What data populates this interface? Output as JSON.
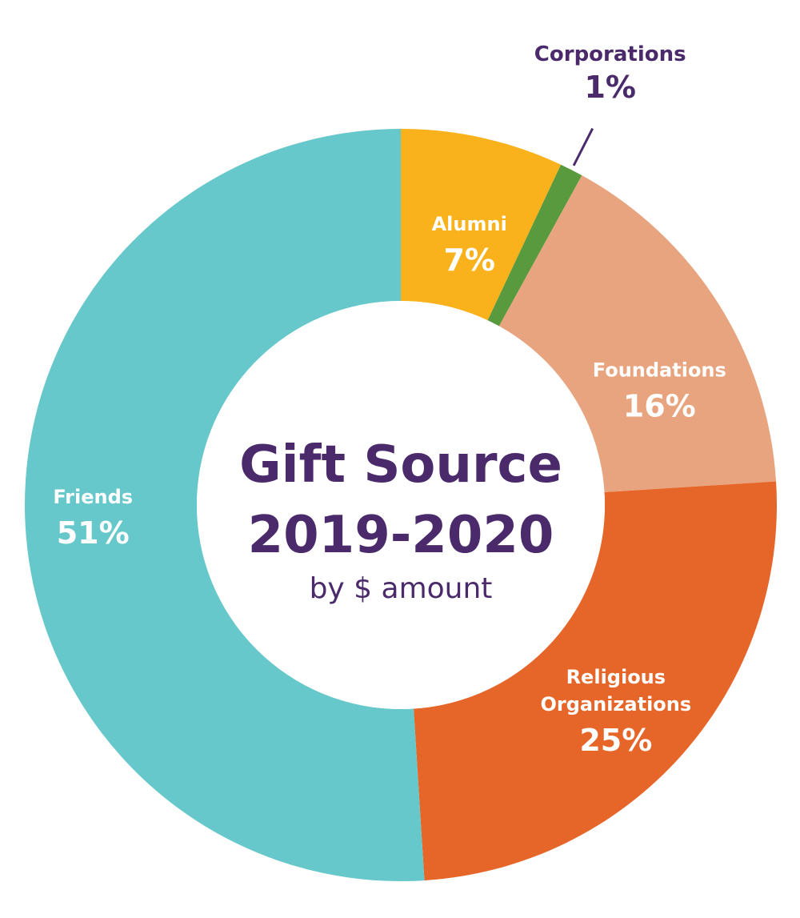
{
  "chart_data": {
    "type": "pie",
    "title": "Gift Source",
    "subtitle": "2019-2020",
    "caption": "by $ amount",
    "slices": [
      {
        "name": "Alumni",
        "value": 7,
        "label": "7%",
        "color": "#f9b21b",
        "label_position": "inside"
      },
      {
        "name": "Corporations",
        "value": 1,
        "label": "1%",
        "color": "#5a9a3e",
        "label_position": "outside"
      },
      {
        "name": "Foundations",
        "value": 16,
        "label": "16%",
        "color": "#e8a47e",
        "label_position": "inside"
      },
      {
        "name": "Religious Organizations",
        "value": 25,
        "label": "25%",
        "color": "#e6662a",
        "label_position": "inside"
      },
      {
        "name": "Friends",
        "value": 51,
        "label": "51%",
        "color": "#67c8cb",
        "label_position": "inside"
      }
    ],
    "legend": "none",
    "text_color_inside": "#ffffff",
    "text_color_outside": "#4b2a6b",
    "center_text_color": "#4b2a6b"
  }
}
